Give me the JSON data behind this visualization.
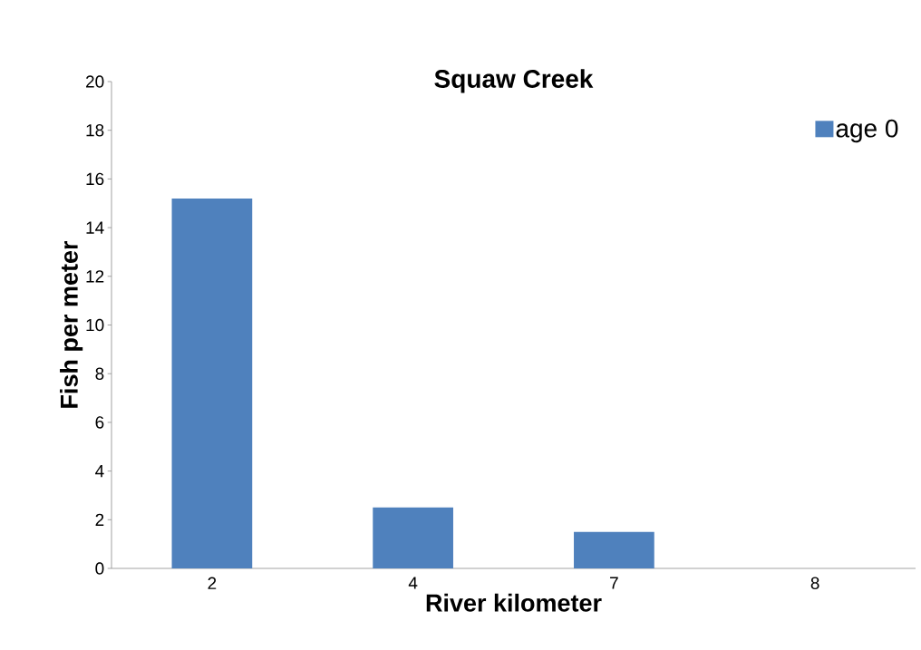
{
  "chart_data": {
    "type": "bar",
    "title": "Squaw Creek",
    "xlabel": "River kilometer",
    "ylabel": "Fish per meter",
    "categories": [
      "2",
      "4",
      "7",
      "8"
    ],
    "series": [
      {
        "name": "age 0",
        "color": "#4f81bd",
        "values": [
          15.2,
          2.5,
          1.5,
          0
        ]
      }
    ],
    "ylim": [
      0,
      20
    ],
    "yticks": [
      0,
      2,
      4,
      6,
      8,
      10,
      12,
      14,
      16,
      18,
      20
    ],
    "legend": "top right"
  }
}
